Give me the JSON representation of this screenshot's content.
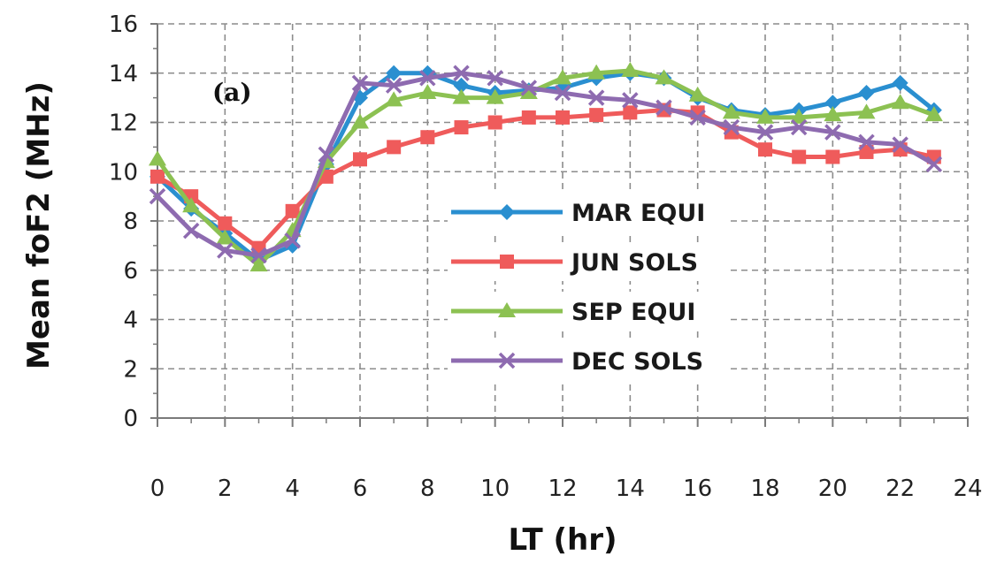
{
  "chart_data": {
    "type": "line",
    "panel_label": "(a)",
    "xlabel": "LT (hr)",
    "ylabel": "Mean foF2 (MHz)",
    "xlim": [
      0,
      24
    ],
    "ylim": [
      0,
      16
    ],
    "xticks": [
      "0",
      "2",
      "4",
      "6",
      "8",
      "10",
      "12",
      "14",
      "16",
      "18",
      "20",
      "22",
      "24"
    ],
    "yticks": [
      "0",
      "2",
      "4",
      "6",
      "8",
      "10",
      "12",
      "14",
      "16"
    ],
    "grid": true,
    "legend_position": "center",
    "x": [
      0,
      1,
      2,
      3,
      4,
      5,
      6,
      7,
      8,
      9,
      10,
      11,
      12,
      13,
      14,
      15,
      16,
      17,
      18,
      19,
      20,
      21,
      22,
      23
    ],
    "series": [
      {
        "name": "MAR EQUI",
        "color": "#2a8fd0",
        "marker": "diamond",
        "values": [
          9.8,
          8.5,
          7.5,
          6.4,
          7.0,
          10.3,
          13.0,
          14.0,
          14.0,
          13.5,
          13.2,
          13.3,
          13.4,
          13.8,
          14.0,
          13.8,
          13.0,
          12.5,
          12.3,
          12.5,
          12.8,
          13.2,
          13.6,
          12.5
        ]
      },
      {
        "name": "JUN SOLS",
        "color": "#ef5b5b",
        "marker": "square",
        "values": [
          9.8,
          9.0,
          7.9,
          6.9,
          8.4,
          9.8,
          10.5,
          11.0,
          11.4,
          11.8,
          12.0,
          12.2,
          12.2,
          12.3,
          12.4,
          12.5,
          12.4,
          11.6,
          10.9,
          10.6,
          10.6,
          10.8,
          10.9,
          10.6
        ]
      },
      {
        "name": "SEP EQUI",
        "color": "#8cc152",
        "marker": "triangle",
        "values": [
          10.5,
          8.6,
          7.3,
          6.2,
          7.6,
          10.4,
          12.0,
          12.9,
          13.2,
          13.0,
          13.0,
          13.2,
          13.8,
          14.0,
          14.1,
          13.8,
          13.1,
          12.4,
          12.2,
          12.2,
          12.3,
          12.4,
          12.8,
          12.3
        ]
      },
      {
        "name": "DEC SOLS",
        "color": "#8e6bb0",
        "marker": "x",
        "values": [
          9.0,
          7.6,
          6.8,
          6.6,
          7.2,
          10.7,
          13.6,
          13.5,
          13.8,
          14.0,
          13.8,
          13.4,
          13.2,
          13.0,
          12.9,
          12.6,
          12.2,
          11.8,
          11.6,
          11.8,
          11.6,
          11.2,
          11.1,
          10.3
        ]
      }
    ]
  }
}
